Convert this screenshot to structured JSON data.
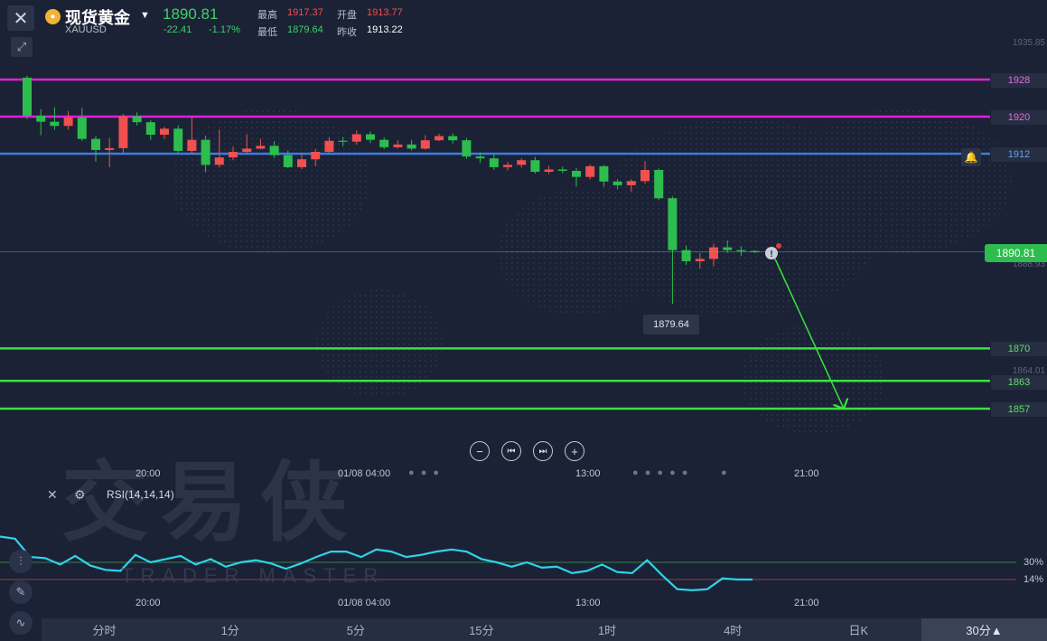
{
  "header": {
    "title": "现货黄金",
    "symbol": "XAUUSD",
    "price": "1890.81",
    "change": "-22.41",
    "change_pct": "-1.17%",
    "quote": [
      {
        "label": "最高",
        "value": "1917.37",
        "color": "#f0504f"
      },
      {
        "label": "开盘",
        "value": "1913.77",
        "color": "#f0504f"
      },
      {
        "label": "最低",
        "value": "1879.64",
        "color": "#3fd06a"
      },
      {
        "label": "昨收",
        "value": "1913.22",
        "color": "#ffffff"
      }
    ]
  },
  "chart_data": {
    "type": "candlestick",
    "y_axis": {
      "top_label": "1935.85",
      "mid_label": "1888.93",
      "bottom_label": "1864.01"
    },
    "candles": [
      {
        "o": 1928.4,
        "c": 1920.2,
        "h": 1928.8,
        "l": 1919.5
      },
      {
        "o": 1920.2,
        "c": 1918.9,
        "h": 1921.6,
        "l": 1916.0
      },
      {
        "o": 1918.9,
        "c": 1918.0,
        "h": 1922.0,
        "l": 1917.2
      },
      {
        "o": 1918.0,
        "c": 1919.8,
        "h": 1921.2,
        "l": 1917.2
      },
      {
        "o": 1919.8,
        "c": 1915.2,
        "h": 1921.9,
        "l": 1914.8
      },
      {
        "o": 1915.2,
        "c": 1912.8,
        "h": 1915.8,
        "l": 1910.3
      },
      {
        "o": 1912.8,
        "c": 1913.2,
        "h": 1915.4,
        "l": 1909.1
      },
      {
        "o": 1913.2,
        "c": 1920.1,
        "h": 1920.6,
        "l": 1912.2
      },
      {
        "o": 1920.1,
        "c": 1918.8,
        "h": 1920.9,
        "l": 1918.1
      },
      {
        "o": 1918.8,
        "c": 1916.1,
        "h": 1919.2,
        "l": 1915.0
      },
      {
        "o": 1916.1,
        "c": 1917.4,
        "h": 1917.8,
        "l": 1915.2
      },
      {
        "o": 1917.4,
        "c": 1912.6,
        "h": 1918.1,
        "l": 1912.1
      },
      {
        "o": 1912.6,
        "c": 1915.0,
        "h": 1919.9,
        "l": 1912.0
      },
      {
        "o": 1915.0,
        "c": 1909.6,
        "h": 1915.9,
        "l": 1908.0
      },
      {
        "o": 1909.6,
        "c": 1911.2,
        "h": 1917.2,
        "l": 1909.0
      },
      {
        "o": 1911.2,
        "c": 1912.4,
        "h": 1913.6,
        "l": 1910.6
      },
      {
        "o": 1912.4,
        "c": 1913.1,
        "h": 1916.2,
        "l": 1912.0
      },
      {
        "o": 1913.1,
        "c": 1913.7,
        "h": 1915.2,
        "l": 1912.9
      },
      {
        "o": 1913.7,
        "c": 1911.7,
        "h": 1914.7,
        "l": 1911.1
      },
      {
        "o": 1911.7,
        "c": 1909.1,
        "h": 1912.7,
        "l": 1908.9
      },
      {
        "o": 1909.1,
        "c": 1910.8,
        "h": 1912.2,
        "l": 1908.7
      },
      {
        "o": 1910.8,
        "c": 1912.4,
        "h": 1913.0,
        "l": 1909.3
      },
      {
        "o": 1912.4,
        "c": 1914.8,
        "h": 1915.6,
        "l": 1912.0
      },
      {
        "o": 1914.8,
        "c": 1914.6,
        "h": 1915.6,
        "l": 1913.6
      },
      {
        "o": 1914.6,
        "c": 1916.2,
        "h": 1917.0,
        "l": 1914.0
      },
      {
        "o": 1916.2,
        "c": 1915.0,
        "h": 1916.8,
        "l": 1914.3
      },
      {
        "o": 1915.0,
        "c": 1913.4,
        "h": 1915.5,
        "l": 1913.0
      },
      {
        "o": 1913.4,
        "c": 1914.0,
        "h": 1914.9,
        "l": 1913.1
      },
      {
        "o": 1914.0,
        "c": 1913.1,
        "h": 1915.0,
        "l": 1912.7
      },
      {
        "o": 1913.1,
        "c": 1914.9,
        "h": 1916.0,
        "l": 1912.9
      },
      {
        "o": 1914.9,
        "c": 1915.8,
        "h": 1916.3,
        "l": 1914.7
      },
      {
        "o": 1915.8,
        "c": 1914.9,
        "h": 1916.4,
        "l": 1914.2
      },
      {
        "o": 1914.9,
        "c": 1911.4,
        "h": 1915.4,
        "l": 1910.9
      },
      {
        "o": 1911.4,
        "c": 1911.0,
        "h": 1912.3,
        "l": 1910.0
      },
      {
        "o": 1911.0,
        "c": 1909.1,
        "h": 1911.9,
        "l": 1908.5
      },
      {
        "o": 1909.1,
        "c": 1909.6,
        "h": 1910.2,
        "l": 1908.4
      },
      {
        "o": 1909.6,
        "c": 1910.6,
        "h": 1911.0,
        "l": 1909.0
      },
      {
        "o": 1910.6,
        "c": 1908.1,
        "h": 1911.3,
        "l": 1907.7
      },
      {
        "o": 1908.1,
        "c": 1908.6,
        "h": 1909.4,
        "l": 1907.6
      },
      {
        "o": 1908.6,
        "c": 1908.3,
        "h": 1909.2,
        "l": 1907.8
      },
      {
        "o": 1908.3,
        "c": 1907.0,
        "h": 1908.9,
        "l": 1904.9
      },
      {
        "o": 1907.0,
        "c": 1909.3,
        "h": 1909.7,
        "l": 1906.5
      },
      {
        "o": 1909.3,
        "c": 1906.0,
        "h": 1909.6,
        "l": 1904.9
      },
      {
        "o": 1906.0,
        "c": 1905.2,
        "h": 1906.5,
        "l": 1904.3
      },
      {
        "o": 1905.2,
        "c": 1906.1,
        "h": 1906.5,
        "l": 1903.8
      },
      {
        "o": 1906.1,
        "c": 1908.5,
        "h": 1910.4,
        "l": 1905.5
      },
      {
        "o": 1908.5,
        "c": 1902.4,
        "h": 1908.8,
        "l": 1902.0
      },
      {
        "o": 1902.4,
        "c": 1891.2,
        "h": 1902.8,
        "l": 1879.64
      },
      {
        "o": 1891.2,
        "c": 1888.8,
        "h": 1892.2,
        "l": 1888.0
      },
      {
        "o": 1888.8,
        "c": 1889.3,
        "h": 1890.6,
        "l": 1887.2
      },
      {
        "o": 1889.3,
        "c": 1891.8,
        "h": 1892.6,
        "l": 1887.7
      },
      {
        "o": 1891.8,
        "c": 1891.2,
        "h": 1893.3,
        "l": 1890.6
      },
      {
        "o": 1891.2,
        "c": 1891.0,
        "h": 1892.0,
        "l": 1890.0
      },
      {
        "o": 1891.0,
        "c": 1890.81,
        "h": 1891.2,
        "l": 1890.6
      }
    ],
    "levels": [
      {
        "value": 1928,
        "label": "1928",
        "color": "#e020d8",
        "text_color": "#e56de0"
      },
      {
        "value": 1920,
        "label": "1920",
        "color": "#e020d8",
        "text_color": "#e56de0"
      },
      {
        "value": 1912,
        "label": "1912",
        "color": "#3a7de0",
        "text_color": "#6a9ee8"
      },
      {
        "value": 1870,
        "label": "1870",
        "color": "#39e23e",
        "text_color": "#5de163"
      },
      {
        "value": 1863,
        "label": "1863",
        "color": "#39e23e",
        "text_color": "#5de163"
      },
      {
        "value": 1857,
        "label": "1857",
        "color": "#39e23e",
        "text_color": "#5de163"
      }
    ],
    "current_price_tag": "1890.81",
    "low_callout": "1879.64",
    "time_labels": [
      "20:00",
      "01/08 04:00",
      "13:00",
      "21:00"
    ],
    "rsi": {
      "label": "RSI(14,14,14)",
      "level_labels": [
        "30%",
        "14%"
      ],
      "levels": [
        30,
        14
      ],
      "values": [
        54,
        52,
        35,
        34,
        28,
        36,
        27,
        23,
        22,
        37,
        30,
        33,
        36,
        28,
        33,
        26,
        30,
        32,
        29,
        24,
        29,
        35,
        40,
        40,
        35,
        42,
        40,
        35,
        37,
        40,
        42,
        40,
        33,
        30,
        26,
        30,
        25,
        26,
        20,
        22,
        28,
        21,
        20,
        32,
        18,
        5,
        4,
        5,
        15,
        14,
        14
      ]
    }
  },
  "navigation": {
    "buttons": [
      "−",
      "⏮",
      "⏭",
      "+"
    ]
  },
  "watermark": {
    "cn": "交易侠",
    "en": "TRADER MASTER"
  },
  "timeframes": [
    {
      "label": "分时",
      "active": false
    },
    {
      "label": "1分",
      "active": false
    },
    {
      "label": "5分",
      "active": false
    },
    {
      "label": "15分",
      "active": false
    },
    {
      "label": "1时",
      "active": false
    },
    {
      "label": "4时",
      "active": false
    },
    {
      "label": "日K",
      "active": false
    },
    {
      "label": "30分▲",
      "active": true
    }
  ],
  "colors": {
    "up": "#f0504f",
    "down": "#2dbd4e",
    "rsi": "#2fd3e8"
  }
}
